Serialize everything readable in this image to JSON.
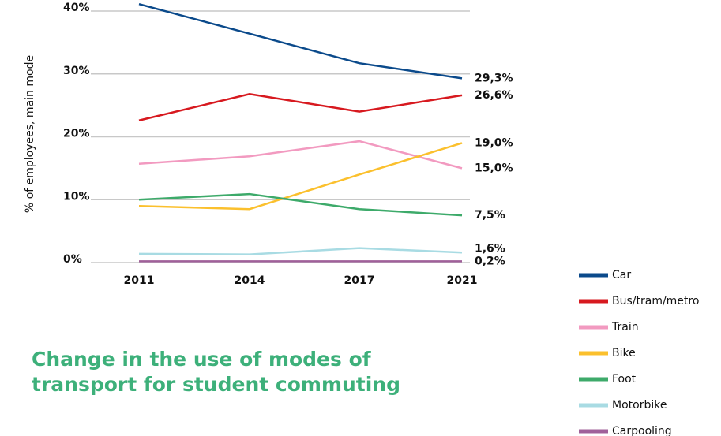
{
  "chart_data": {
    "type": "line",
    "title": "Change in the use of modes of transport for student commuting",
    "ylabel": "% of employees, main mode",
    "categories": [
      "2011",
      "2014",
      "2017",
      "2021"
    ],
    "ylim": [
      0,
      40
    ],
    "yticks": [
      {
        "value": 0,
        "label": "0%"
      },
      {
        "value": 10,
        "label": "10%"
      },
      {
        "value": 20,
        "label": "20%"
      },
      {
        "value": 30,
        "label": "30%"
      },
      {
        "value": 40,
        "label": "40%"
      }
    ],
    "grid": true,
    "legend": "right",
    "series": [
      {
        "name": "Car",
        "color": "#0b4a8b",
        "values": [
          41.1,
          36.4,
          31.7,
          29.3
        ],
        "value_labels": [
          null,
          null,
          null,
          "29,3%"
        ]
      },
      {
        "name": "Bus/tram/metro",
        "color": "#d7191f",
        "values": [
          22.6,
          26.8,
          24.0,
          26.6
        ],
        "value_labels": [
          null,
          null,
          null,
          "26,6%"
        ]
      },
      {
        "name": "Train",
        "color": "#f29ac0",
        "values": [
          15.7,
          16.9,
          19.3,
          15.0
        ],
        "value_labels": [
          null,
          null,
          null,
          "15,0%"
        ]
      },
      {
        "name": "Bike",
        "color": "#fbc02d",
        "values": [
          9.0,
          8.5,
          14.0,
          19.0
        ],
        "value_labels": [
          null,
          null,
          null,
          "19,0%"
        ]
      },
      {
        "name": "Foot",
        "color": "#3daa6a",
        "values": [
          10.0,
          10.9,
          8.5,
          7.5
        ],
        "value_labels": [
          null,
          null,
          null,
          "7,5%"
        ]
      },
      {
        "name": "Motorbike",
        "color": "#a8dbe3",
        "values": [
          1.4,
          1.3,
          2.3,
          1.6
        ],
        "value_labels": [
          null,
          null,
          null,
          "1,6%"
        ]
      },
      {
        "name": "Carpooling",
        "color": "#a0609a",
        "values": [
          0.2,
          0.2,
          0.2,
          0.2
        ],
        "value_labels": [
          null,
          null,
          null,
          "0,2%"
        ]
      }
    ]
  }
}
